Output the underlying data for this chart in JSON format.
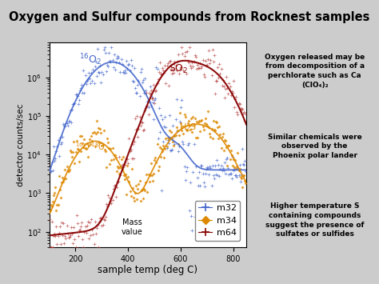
{
  "title": "Oxygen and Sulfur compounds from Rocknest samples",
  "title_bg": "#f5c18a",
  "title_border": "#cc8833",
  "xlabel": "sample temp (deg C)",
  "ylabel": "detector counts/sec",
  "xlim": [
    100,
    850
  ],
  "background": "#cccccc",
  "plot_bg": "#ffffff",
  "annotation_boxes": [
    "Oxygen released may be\nfrom decomposition of a\nperchlorate such as Ca\n(ClO₄)₂",
    "Similar chemicals were\nobserved by the\nPhoenix polar lander",
    "Higher temperature S\ncontaining compounds\nsuggest the presence of\nsulfates or sulfides"
  ],
  "legend_labels": [
    "m32",
    "m34",
    "m64"
  ],
  "color_m32": "#4466cc",
  "color_m34": "#dd8800",
  "color_m64": "#880000",
  "mass_value_label": "Mass\nvalue"
}
